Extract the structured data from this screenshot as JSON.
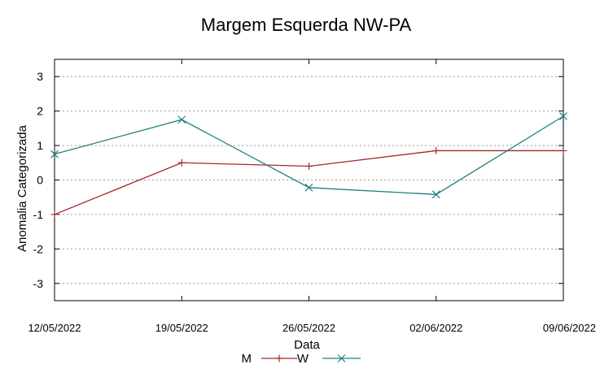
{
  "chart_data": {
    "type": "line",
    "title": "Margem Esquerda NW-PA",
    "xlabel": "Data",
    "ylabel": "Anomalia Categorizada",
    "categories": [
      "12/05/2022",
      "19/05/2022",
      "26/05/2022",
      "02/06/2022",
      "09/06/2022"
    ],
    "ylim": [
      -3.5,
      3.5
    ],
    "yticks": [
      -3,
      -2,
      -1,
      0,
      1,
      2,
      3
    ],
    "grid": "horizontal dashed",
    "legend_position": "bottom",
    "series": [
      {
        "name": "M",
        "color": "#a52a2a",
        "marker": "plus",
        "values": [
          -1.0,
          0.5,
          0.4,
          0.85,
          0.85
        ]
      },
      {
        "name": "W",
        "color": "#1f7f7f",
        "marker": "x",
        "values": [
          0.75,
          1.75,
          -0.22,
          -0.42,
          1.85
        ]
      }
    ]
  }
}
